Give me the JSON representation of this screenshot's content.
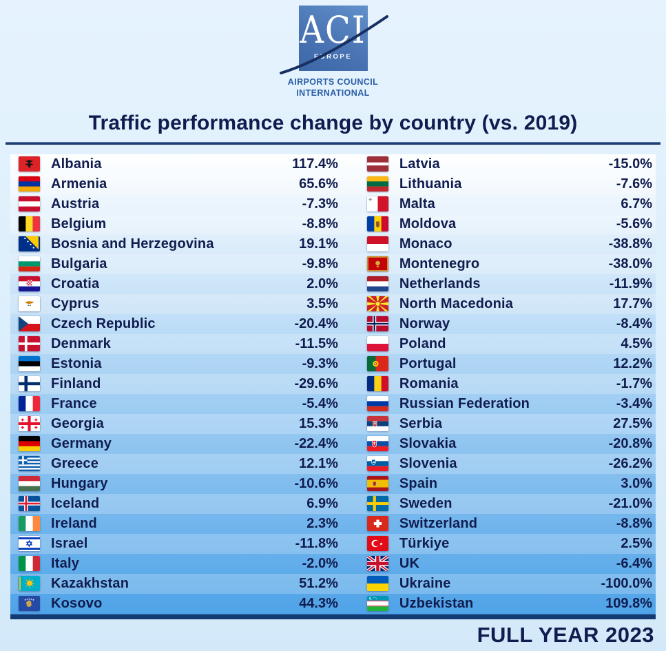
{
  "logo": {
    "acronym": "ACI",
    "region": "EUROPE",
    "caption_line1": "AIRPORTS COUNCIL",
    "caption_line2": "INTERNATIONAL"
  },
  "title": "Traffic performance change by country (vs. 2019)",
  "footer": {
    "label": "FULL YEAR 2023"
  },
  "colors": {
    "text_navy": "#101c4e",
    "rule_blue": "#17305f",
    "bar_navy": "#143a74",
    "table_gradient_top": "#ffffff",
    "table_gradient_bottom": "#4fa3e8",
    "logo_blue": "#4a74b4",
    "caption_blue": "#2b5da6"
  },
  "chart_data": {
    "type": "table",
    "title": "Traffic performance change by country (vs. 2019)",
    "period": "FULL YEAR 2023",
    "value_unit": "% change vs 2019",
    "layout": {
      "columns": 2,
      "rows_per_column": 23
    },
    "entries": [
      {
        "country": "Albania",
        "flag": "albania",
        "value": 117.4
      },
      {
        "country": "Armenia",
        "flag": "armenia",
        "value": 65.6
      },
      {
        "country": "Austria",
        "flag": "austria",
        "value": -7.3
      },
      {
        "country": "Belgium",
        "flag": "belgium",
        "value": -8.8
      },
      {
        "country": "Bosnia and Herzegovina",
        "flag": "bosnia",
        "value": 19.1
      },
      {
        "country": "Bulgaria",
        "flag": "bulgaria",
        "value": -9.8
      },
      {
        "country": "Croatia",
        "flag": "croatia",
        "value": 2.0
      },
      {
        "country": "Cyprus",
        "flag": "cyprus",
        "value": 3.5
      },
      {
        "country": "Czech Republic",
        "flag": "czech",
        "value": -20.4
      },
      {
        "country": "Denmark",
        "flag": "denmark",
        "value": -11.5
      },
      {
        "country": "Estonia",
        "flag": "estonia",
        "value": -9.3
      },
      {
        "country": "Finland",
        "flag": "finland",
        "value": -29.6
      },
      {
        "country": "France",
        "flag": "france",
        "value": -5.4
      },
      {
        "country": "Georgia",
        "flag": "georgia",
        "value": 15.3
      },
      {
        "country": "Germany",
        "flag": "germany",
        "value": -22.4
      },
      {
        "country": "Greece",
        "flag": "greece",
        "value": 12.1
      },
      {
        "country": "Hungary",
        "flag": "hungary",
        "value": -10.6
      },
      {
        "country": "Iceland",
        "flag": "iceland",
        "value": 6.9
      },
      {
        "country": "Ireland",
        "flag": "ireland",
        "value": 2.3
      },
      {
        "country": "Israel",
        "flag": "israel",
        "value": -11.8
      },
      {
        "country": "Italy",
        "flag": "italy",
        "value": -2.0
      },
      {
        "country": "Kazakhstan",
        "flag": "kazakhstan",
        "value": 51.2
      },
      {
        "country": "Kosovo",
        "flag": "kosovo",
        "value": 44.3
      },
      {
        "country": "Latvia",
        "flag": "latvia",
        "value": -15.0
      },
      {
        "country": "Lithuania",
        "flag": "lithuania",
        "value": -7.6
      },
      {
        "country": "Malta",
        "flag": "malta",
        "value": 6.7
      },
      {
        "country": "Moldova",
        "flag": "moldova",
        "value": -5.6
      },
      {
        "country": "Monaco",
        "flag": "monaco",
        "value": -38.8
      },
      {
        "country": "Montenegro",
        "flag": "montenegro",
        "value": -38.0
      },
      {
        "country": "Netherlands",
        "flag": "netherlands",
        "value": -11.9
      },
      {
        "country": "North Macedonia",
        "flag": "northmacedonia",
        "value": 17.7
      },
      {
        "country": "Norway",
        "flag": "norway",
        "value": -8.4
      },
      {
        "country": "Poland",
        "flag": "poland",
        "value": 4.5
      },
      {
        "country": "Portugal",
        "flag": "portugal",
        "value": 12.2
      },
      {
        "country": "Romania",
        "flag": "romania",
        "value": -1.7
      },
      {
        "country": "Russian Federation",
        "flag": "russia",
        "value": -3.4
      },
      {
        "country": "Serbia",
        "flag": "serbia",
        "value": 27.5
      },
      {
        "country": "Slovakia",
        "flag": "slovakia",
        "value": -20.8
      },
      {
        "country": "Slovenia",
        "flag": "slovenia",
        "value": -26.2
      },
      {
        "country": "Spain",
        "flag": "spain",
        "value": 3.0
      },
      {
        "country": "Sweden",
        "flag": "sweden",
        "value": -21.0
      },
      {
        "country": "Switzerland",
        "flag": "switzerland",
        "value": -8.8
      },
      {
        "country": "Türkiye",
        "flag": "turkiye",
        "value": 2.5
      },
      {
        "country": "UK",
        "flag": "uk",
        "value": -6.4
      },
      {
        "country": "Ukraine",
        "flag": "ukraine",
        "value": -100.0
      },
      {
        "country": "Uzbekistan",
        "flag": "uzbekistan",
        "value": 109.8
      }
    ]
  },
  "flags": {
    "albania": "<rect width='30' height='22' fill='#dd2328'/><path d='M15 4.5C13.6 6 11.9 6.5 9.6 6.1C11 7.8 12.4 8.6 13.9 8.8L12.9 10.8C11.4 10.3 10 10.9 9 12.3C10.5 12.1 11.8 12.4 12.8 13.3L15 17.5L17.2 13.3C18.2 12.4 19.5 12.1 21 12.3C20 10.9 18.6 10.3 17.1 10.8L16.1 8.8C17.6 8.6 19 7.8 20.4 6.1C18.1 6.5 16.4 6 15 4.5Z' fill='#1d1412'/>",
    "armenia": "<rect width='30' height='22' fill='#d90012'/><rect y='7.33' width='30' height='7.34' fill='#0033a0'/><rect y='14.67' width='30' height='7.33' fill='#f2a800'/>",
    "austria": "<rect width='30' height='22' fill='#fff'/><rect width='30' height='7.33' fill='#c8102e'/><rect y='14.67' width='30' height='7.33' fill='#c8102e'/>",
    "belgium": "<rect width='30' height='22' fill='#000'/><rect x='10' width='10' height='22' fill='#fdda24'/><rect x='20' width='10' height='22' fill='#ef3340'/>",
    "bosnia": "<rect width='30' height='22' fill='#002f87'/><polygon points='10,0 28,0 28,19' fill='#fecb00'/><circle cx='9' cy='3' r='1.1' fill='#fff'/><circle cx='13' cy='7.5' r='1.1' fill='#fff'/><circle cx='17' cy='12' r='1.1' fill='#fff'/><circle cx='21' cy='16.5' r='1.1' fill='#fff'/>",
    "bulgaria": "<rect width='30' height='22' fill='#fff'/><rect y='7.33' width='30' height='7.34' fill='#00966e'/><rect y='14.67' width='30' height='7.33' fill='#d62612'/>",
    "croatia": "<rect width='30' height='22' fill='#fff'/><rect width='30' height='7.33' fill='#c8102e'/><rect y='14.67' width='30' height='7.33' fill='#171796'/><rect x='11.2' y='5.5' width='7.6' height='8' fill='#fff'/><rect x='11.2' y='5.5' width='1.9' height='2' fill='#c8102e'/><rect x='15' y='5.5' width='1.9' height='2' fill='#c8102e'/><rect x='13.1' y='7.5' width='1.9' height='2' fill='#c8102e'/><rect x='16.9' y='7.5' width='1.9' height='2' fill='#c8102e'/><rect x='11.2' y='9.5' width='1.9' height='2' fill='#c8102e'/><rect x='15' y='9.5' width='1.9' height='2' fill='#c8102e'/><rect x='13.1' y='11.5' width='1.9' height='2' fill='#c8102e'/><rect x='16.9' y='11.5' width='1.9' height='2' fill='#c8102e'/>",
    "cyprus": "<rect width='30' height='22' fill='#fff'/><path d='M9.5 8.6 Q13 6.6 17 7.5 Q20.5 8.3 21.5 7.8 L19.9 9.9 Q16 11.4 13 10.8 Q10 10.3 9.5 8.6 Z' fill='#d57800'/><circle cx='13.6' cy='13.2' r='1' fill='#4f7942'/><circle cx='16.4' cy='13.2' r='1' fill='#4f7942'/>",
    "czech": "<rect width='30' height='11' fill='#fff'/><rect y='11' width='30' height='11' fill='#d7141a'/><polygon points='0,0 13.5,11 0,22' fill='#11457e'/>",
    "denmark": "<rect width='30' height='22' fill='#c8102e'/><rect x='8.6' width='3.6' height='22' fill='#fff'/><rect y='9.2' width='30' height='3.6' fill='#fff'/>",
    "estonia": "<rect width='30' height='22' fill='#0072ce'/><rect y='7.33' width='30' height='7.34' fill='#000'/><rect y='14.67' width='30' height='7.33' fill='#fff'/>",
    "finland": "<rect width='30' height='22' fill='#fff'/><rect x='8.2' width='4.4' height='22' fill='#002f6c'/><rect y='8.8' width='30' height='4.4' fill='#002f6c'/>",
    "france": "<rect width='30' height='22' fill='#fff'/><rect width='10' height='22' fill='#002395'/><rect x='20' width='10' height='22' fill='#ed2939'/>",
    "georgia": "<rect width='30' height='22' fill='#fff'/><rect x='13' width='4' height='22' fill='#e8112d'/><rect y='9' width='30' height='4' fill='#e8112d'/><path d='M5.5 3.5 v4 M3.5 5.5 h4 M24.5 3.5 v4 M22.5 5.5 h4 M5.5 14.5 v4 M3.5 16.5 h4 M24.5 14.5 v4 M22.5 16.5 h4' stroke='#e8112d' stroke-width='1.5'/>",
    "germany": "<rect width='30' height='22' fill='#000'/><rect y='7.33' width='30' height='7.34' fill='#dd0000'/><rect y='14.67' width='30' height='7.33' fill='#ffce00'/>",
    "greece": "<rect width='30' height='22' fill='#0d5eaf'/><rect y='2.44' width='30' height='2.44' fill='#fff'/><rect y='7.33' width='30' height='2.45' fill='#fff'/><rect y='12.22' width='30' height='2.45' fill='#fff'/><rect y='17.11' width='30' height='2.45' fill='#fff'/><rect width='12.2' height='12.2' fill='#0d5eaf'/><rect x='5' width='2.4' height='12.2' fill='#fff'/><rect y='4.9' width='12.2' height='2.4' fill='#fff'/>",
    "hungary": "<rect width='30' height='22' fill='#ce2939'/><rect y='7.33' width='30' height='7.34' fill='#fff'/><rect y='14.67' width='30' height='7.33' fill='#477050'/>",
    "iceland": "<rect width='30' height='22' fill='#02529c'/><rect x='7.8' width='5.4' height='22' fill='#fff'/><rect y='8.3' width='30' height='5.4' fill='#fff'/><rect x='9.2' width='2.6' height='22' fill='#dc1e35'/><rect y='9.7' width='30' height='2.6' fill='#dc1e35'/>",
    "ireland": "<rect width='30' height='22' fill='#fff'/><rect width='10' height='22' fill='#169b62'/><rect x='20' width='10' height='22' fill='#ff883e'/>",
    "israel": "<rect width='30' height='22' fill='#fff'/><rect y='2' width='30' height='2.8' fill='#0038b8'/><rect y='17.2' width='30' height='2.8' fill='#0038b8'/><path d='M15 6.8 L18.6 13 L11.4 13 Z M15 15.2 L11.4 9 L18.6 9 Z' fill='none' stroke='#0038b8' stroke-width='1.1'/>",
    "italy": "<rect width='30' height='22' fill='#fff'/><rect width='10' height='22' fill='#009246'/><rect x='20' width='10' height='22' fill='#ce2b37'/>",
    "kazakhstan": "<rect width='30' height='22' fill='#00afca'/><circle cx='15.5' cy='10.5' r='4' fill='#fec50c'/><path d='M15.5 3.5 v2 M15.5 15.5 v2 M8.8 10.5 h2 M19.7 10.5 h2 M10.8 5.8 l1.4 1.4 M18.8 13.4 l1.4 1.4 M20.2 5.8 l-1.4 1.4 M12.2 13.4 l-1.4 1.4' stroke='#fec50c' stroke-width='1.1'/><rect x='1' y='1' width='2' height='20' fill='#fec50c' opacity='.85'/>",
    "kosovo": "<rect width='30' height='22' fill='#244aa5'/><path d='M12 8 l2 -1.5 2.5 .5 1.5 2 -.5 2.5 1 1.5 -2 2.5 -3 .5 -2.5 -2 .5 -2 -1.5 -1.5 Z' fill='#cfa44e'/><circle cx='9.3' cy='5.8' r='.9' fill='#fff'/><circle cx='12.1' cy='4.9' r='.9' fill='#fff'/><circle cx='15' cy='4.6' r='.9' fill='#fff'/><circle cx='17.9' cy='4.9' r='.9' fill='#fff'/><circle cx='20.7' cy='5.8' r='.9' fill='#fff'/>",
    "latvia": "<rect width='30' height='22' fill='#9e3039'/><rect y='8.8' width='30' height='4.4' fill='#fff'/>",
    "lithuania": "<rect width='30' height='22' fill='#fdb913'/><rect y='7.33' width='30' height='7.34' fill='#006a44'/><rect y='14.67' width='30' height='7.33' fill='#c1272d'/>",
    "malta": "<rect width='30' height='22' fill='#fff'/><rect x='15' width='15' height='22' fill='#cf142b'/><path d='M4.5 2.2 v4.6 M2.2 4.5 h4.6' stroke='#9aa0a6' stroke-width='1.6'/>",
    "moldova": "<rect width='30' height='22' fill='#ffd200'/><rect width='10' height='22' fill='#003da5'/><rect x='20' width='10' height='22' fill='#cc092f'/><path d='M12.5 7.5 H17.5 V13 Q17.5 15.5 15 16.5 Q12.5 15.5 12.5 13 Z' fill='#8a4a2c' opacity='.9'/>",
    "monaco": "<rect width='30' height='22' fill='#fff'/><rect width='30' height='11' fill='#ce1126'/>",
    "montenegro": "<rect width='30' height='22' fill='#c40308'/><rect x='1' y='1' width='28' height='20' fill='none' stroke='#d3ae3b' stroke-width='1.6'/><circle cx='15' cy='10' r='3.2' fill='#d3ae3b'/><path d='M15 13 l-2.5 3 h5 Z' fill='#d3ae3b'/>",
    "netherlands": "<rect width='30' height='22' fill='#fff'/><rect width='30' height='7.33' fill='#ae1c28'/><rect y='14.67' width='30' height='7.33' fill='#21468b'/>",
    "northmacedonia": "<rect width='30' height='22' fill='#ce2028'/><path d='M15 11 L0 0 L4.5 0 Z M15 11 L12.8 0 L17.2 0 Z M15 11 L25.5 0 L30 0 Z M15 11 L30 8.5 L30 13.5 Z M15 11 L30 22 L25.5 22 Z M15 11 L17.2 22 L12.8 22 Z M15 11 L4.5 22 L0 22 Z M15 11 L0 13.5 L0 8.5 Z' fill='#f8e92e'/><circle cx='15' cy='11' r='3.4' fill='#f8e92e' stroke='#ce2028' stroke-width='.8'/>",
    "norway": "<rect width='30' height='22' fill='#ba0c2f'/><rect x='7.8' width='5' height='22' fill='#fff'/><rect y='8.5' width='30' height='5' fill='#fff'/><rect x='9.2' width='2.2' height='22' fill='#00205b'/><rect y='9.9' width='30' height='2.2' fill='#00205b'/>",
    "poland": "<rect width='30' height='22' fill='#dc143c'/><rect width='30' height='11' fill='#fff'/>",
    "portugal": "<rect width='30' height='22' fill='#da291c'/><rect width='12' height='22' fill='#046a38'/><circle cx='12' cy='11' r='4' fill='#ffe900' opacity='.95'/><circle cx='12' cy='11' r='2.2' fill='#da291c'/><circle cx='12' cy='11' r='1' fill='#fff'/>",
    "romania": "<rect width='30' height='22' fill='#fcd116'/><rect width='10' height='22' fill='#002b7f'/><rect x='20' width='10' height='22' fill='#ce1126'/>",
    "russia": "<rect width='30' height='22' fill='#fff'/><rect y='7.33' width='30' height='7.34' fill='#0039a6'/><rect y='14.67' width='30' height='7.33' fill='#d52b1e'/>",
    "serbia": "<rect width='30' height='22' fill='#fff'/><rect width='30' height='7.33' fill='#c6363c'/><rect y='7.33' width='30' height='7.34' fill='#0c4076'/><path d='M8.5 7.5 H13.5 V12.5 Q13.5 14.8 11 15.7 Q8.5 14.8 8.5 12.5 Z' fill='#c6363c' stroke='#fff' stroke-width='.7'/><path d='M11 9 v4 M9.3 10.2 h3.4' stroke='#fff' stroke-width='.8'/>",
    "slovakia": "<rect width='30' height='22' fill='#fff'/><rect y='7.33' width='30' height='7.34' fill='#0b4ea2'/><rect y='14.67' width='30' height='7.33' fill='#ee1c25'/><path d='M7.5 6.5 H13 V12.5 Q13 15.1 10.25 16.1 Q7.5 15.1 7.5 12.5 Z' fill='#ee1c25' stroke='#fff' stroke-width='.7'/><path d='M10.25 8 v5 M8.5 9.5 h3.5 M8.8 11.2 h2.9' stroke='#fff' stroke-width='.8'/>",
    "slovenia": "<rect width='30' height='22' fill='#fff'/><rect y='7.33' width='30' height='7.34' fill='#005da4'/><rect y='14.67' width='30' height='7.33' fill='#ed1c24'/><path d='M6.5 5 H11.5 V9.5 Q11.5 11.7 9 12.5 Q6.5 11.7 6.5 9.5 Z' fill='#005da4' stroke='#fff' stroke-width='.7'/><path d='M7.3 9.8 l1.7 -2 .9 1 .9 -1 1.7 2 Z' fill='#fff'/>",
    "spain": "<rect width='30' height='22' fill='#f1bf00'/><rect width='30' height='5.5' fill='#aa151b'/><rect y='16.5' width='30' height='5.5' fill='#aa151b'/><path d='M8.5 8.5 H12.5 V12 Q12.5 13.8 10.5 14.4 Q8.5 13.8 8.5 12 Z' fill='#aa151b' opacity='.85'/><rect x='7' y='8.5' width='1' height='5' fill='#b5b5b5'/><rect x='13' y='8.5' width='1' height='5' fill='#b5b5b5'/>",
    "sweden": "<rect width='30' height='22' fill='#006aa7'/><rect x='8.4' width='4' height='22' fill='#fecc02'/><rect y='9' width='30' height='4' fill='#fecc02'/>",
    "switzerland": "<rect width='30' height='22' fill='#da291c'/><rect x='13' y='5.5' width='4' height='11' fill='#fff'/><rect x='9.5' y='9' width='11' height='4' fill='#fff'/>",
    "turkiye": "<rect width='30' height='22' fill='#e30a17'/><circle cx='11.5' cy='11' r='5.2' fill='#fff'/><circle cx='12.9' cy='11' r='4.1' fill='#e30a17'/><path d='M19.8 9 l.62 1.62 1.73 .09 -1.35 1.09 .45 1.67 -1.45 -.95 -1.45 .95 .45 -1.67 -1.35 -1.09 1.73 -.09 Z' fill='#fff'/>",
    "uk": "<rect width='30' height='22' fill='#012169'/><path d='M0 0 L30 22 M30 0 L0 22' stroke='#fff' stroke-width='4.4'/><path d='M0 0 L30 22 M30 0 L0 22' stroke='#c8102e' stroke-width='1.8'/><path d='M15 0 V22 M0 11 H30' stroke='#fff' stroke-width='7.4'/><path d='M15 0 V22 M0 11 H30' stroke='#c8102e' stroke-width='4.4'/>",
    "ukraine": "<rect width='30' height='22' fill='#ffd500'/><rect width='30' height='11' fill='#005bbb'/>",
    "uzbekistan": "<rect width='30' height='22' fill='#fff'/><rect width='30' height='6.8' fill='#0099b5'/><rect y='15.2' width='30' height='6.8' fill='#1eb53a'/><rect y='6.8' width='30' height='.9' fill='#ce1126'/><rect y='14.3' width='30' height='.9' fill='#ce1126'/><circle cx='5.2' cy='3.4' r='2.1' fill='#fff'/><circle cx='6' cy='3.1' r='1.7' fill='#0099b5'/><circle cx='9.5' cy='2.2' r='.55' fill='#fff'/><circle cx='11.5' cy='2.8' r='.55' fill='#fff'/><circle cx='13.3' cy='3.8' r='.55' fill='#fff'/>"
  }
}
